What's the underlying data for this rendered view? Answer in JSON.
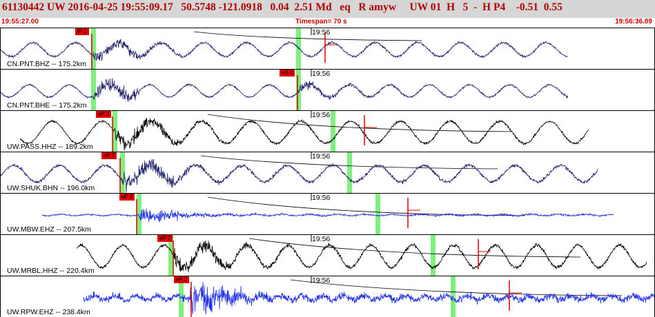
{
  "header": {
    "title": "61130442 UW 2016-04-25 19:55:09.17   50.5748 -121.0918   0.04  2.51 Md   eq   R amyw     UW 01  H   5  -  H P4    -0.51  0.55",
    "start_time": "19:55:27.00",
    "timespan": "Timespan=  70 s",
    "end_time": "19:56:36.89"
  },
  "colors": {
    "title": "#b00000",
    "pick": "#e00000",
    "window": "#7ff07f",
    "dark_trace": "#23246e",
    "black_trace": "#000000",
    "blue_trace": "#1f2fe6"
  },
  "minute_label": "19:56",
  "channels": [
    {
      "label": "CN.PNT.BHZ -- 175.2km",
      "pick": "iP 1",
      "color": "#23246e"
    },
    {
      "label": "CN.PNT.BHE -- 175.2km",
      "pick": "eS 2",
      "color": "#23246e"
    },
    {
      "label": "UW.PASS.HHZ -- 189.2km",
      "pick": "eP 2",
      "color": "#000000"
    },
    {
      "label": "UW.SHUK.BHN -- 196.0km",
      "pick": "eP 2",
      "color": "#23246e"
    },
    {
      "label": "UW.MBW.EHZ -- 207.5km",
      "pick": "eP 2",
      "color": "#1f2fe6"
    },
    {
      "label": "UW.MRBL.HHZ -- 220.4km",
      "pick": "eP 2",
      "color": "#000000"
    },
    {
      "label": "UW.RPW.EHZ -- 238.4km",
      "pick": "eP 2",
      "color": "#1f2fe6"
    }
  ]
}
